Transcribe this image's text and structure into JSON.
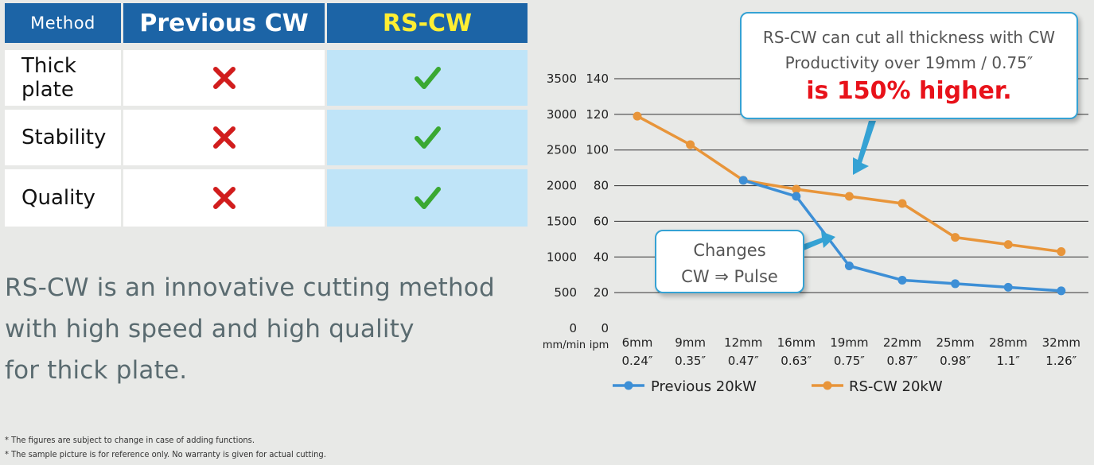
{
  "table": {
    "headers": {
      "method": "Method",
      "previous": "Previous CW",
      "rs": "RS-CW"
    },
    "rows": [
      {
        "label": "Thick plate",
        "previous": "cross",
        "rs": "check"
      },
      {
        "label": "Stability",
        "previous": "cross",
        "rs": "check"
      },
      {
        "label": "Quality",
        "previous": "cross",
        "rs": "check"
      }
    ]
  },
  "tagline": {
    "line1": "RS-CW is an innovative cutting method",
    "line2": "with high speed and high quality",
    "line3": "for thick plate."
  },
  "notes": {
    "n1": "* The figures are subject to change in case of adding functions.",
    "n2": "* The sample picture is for reference only.  No warranty is given for actual cutting."
  },
  "callout_main": {
    "line1": "RS-CW can cut all thickness with CW",
    "line2": "Productivity over 19mm / 0.75″",
    "line3": "is 150% higher."
  },
  "callout_small": {
    "line1": "Changes",
    "line2": "CW ⇒ Pulse"
  },
  "colors": {
    "previous": "#3d8fd6",
    "rs": "#e8953a",
    "header": "#1c64a6",
    "accent": "#ffee33"
  },
  "chart_data": {
    "type": "line",
    "categories": [
      {
        "mm": "6mm",
        "inch": "0.24″"
      },
      {
        "mm": "9mm",
        "inch": "0.35″"
      },
      {
        "mm": "12mm",
        "inch": "0.47″"
      },
      {
        "mm": "16mm",
        "inch": "0.63″"
      },
      {
        "mm": "19mm",
        "inch": "0.75″"
      },
      {
        "mm": "22mm",
        "inch": "0.87″"
      },
      {
        "mm": "25mm",
        "inch": "0.98″"
      },
      {
        "mm": "28mm",
        "inch": "1.1″"
      },
      {
        "mm": "32mm",
        "inch": "1.26″"
      }
    ],
    "y_mm_min": {
      "unit": "mm/min",
      "ticks": [
        "0",
        "500",
        "1000",
        "1500",
        "2000",
        "2500",
        "3000",
        "3500"
      ]
    },
    "y_ipm": {
      "unit": "ipm",
      "ticks": [
        "0",
        "20",
        "40",
        "60",
        "80",
        "100",
        "120",
        "140"
      ]
    },
    "ylim_ipm": [
      0,
      140
    ],
    "series": [
      {
        "name": "Previous 20kW",
        "values_ipm": [
          null,
          null,
          83,
          74,
          35,
          27,
          25,
          23,
          21
        ]
      },
      {
        "name": "RS-CW 20kW",
        "values_ipm": [
          119,
          103,
          83,
          78,
          74,
          70,
          51,
          47,
          43
        ]
      }
    ],
    "grid": true,
    "legend": "bottom"
  }
}
